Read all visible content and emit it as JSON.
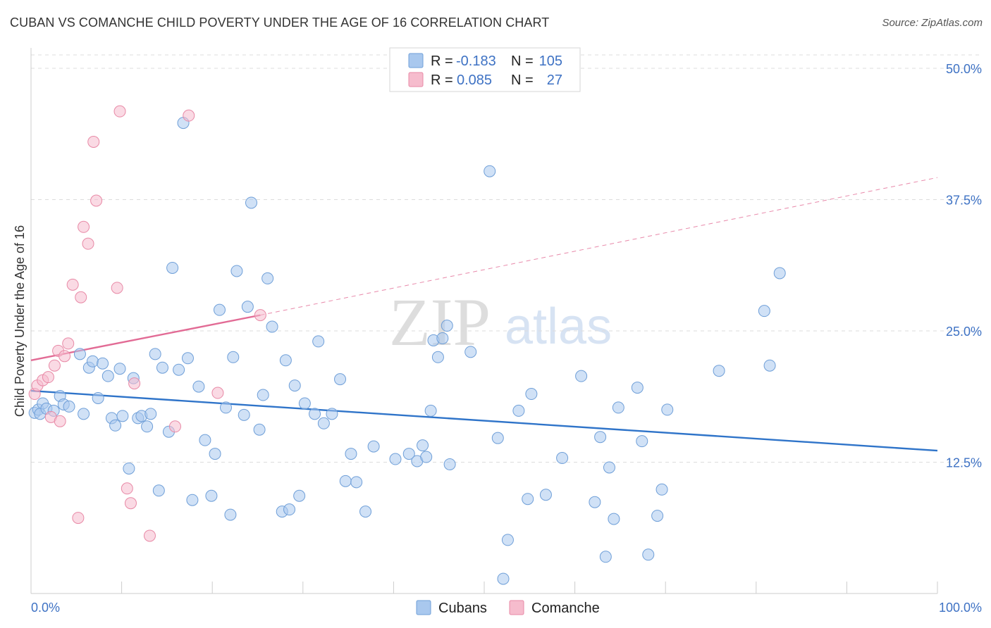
{
  "header": {
    "title": "CUBAN VS COMANCHE CHILD POVERTY UNDER THE AGE OF 16 CORRELATION CHART",
    "source": "Source: ZipAtlas.com"
  },
  "watermark": {
    "zip": "ZIP",
    "atlas": "atlas"
  },
  "legend_top": {
    "rows": [
      {
        "r_label": "R =",
        "r_value": "-0.183",
        "n_label": "N =",
        "n_value": "105",
        "color": "#a9c8ee",
        "stroke": "#6f9fd8"
      },
      {
        "r_label": "R =",
        "r_value": "0.085",
        "n_label": "N =",
        "n_value": "27",
        "color": "#f6bccd",
        "stroke": "#e889a6"
      }
    ]
  },
  "legend_bottom": {
    "items": [
      {
        "label": "Cubans",
        "color": "#a9c8ee",
        "stroke": "#6f9fd8"
      },
      {
        "label": "Comanche",
        "color": "#f6bccd",
        "stroke": "#e889a6"
      }
    ]
  },
  "chart_data": {
    "type": "scatter",
    "title": "CUBAN VS COMANCHE CHILD POVERTY UNDER THE AGE OF 16 CORRELATION CHART",
    "xlabel": "",
    "ylabel": "Child Poverty Under the Age of 16",
    "xlim": [
      0,
      100
    ],
    "ylim": [
      0,
      52
    ],
    "x_tick_labels": [
      "0.0%",
      "100.0%"
    ],
    "y_ticks": [
      12.5,
      25.0,
      37.5,
      50.0
    ],
    "y_tick_labels": [
      "12.5%",
      "25.0%",
      "37.5%",
      "50.0%"
    ],
    "grid": true,
    "legend_position": "top-center",
    "series": [
      {
        "name": "Cubans",
        "color": "#a9c8ee",
        "stroke": "#6f9fd8",
        "trend": {
          "x": [
            0,
            100
          ],
          "y": [
            19.3,
            13.6
          ],
          "color": "#2f74c9"
        },
        "points": [
          [
            0.4,
            17.2
          ],
          [
            0.8,
            17.5
          ],
          [
            1.0,
            17.1
          ],
          [
            1.3,
            18.1
          ],
          [
            1.7,
            17.6
          ],
          [
            2.5,
            17.4
          ],
          [
            3.2,
            18.8
          ],
          [
            3.6,
            18.0
          ],
          [
            4.2,
            17.8
          ],
          [
            5.4,
            22.8
          ],
          [
            5.8,
            17.1
          ],
          [
            6.4,
            21.5
          ],
          [
            6.8,
            22.1
          ],
          [
            7.4,
            18.6
          ],
          [
            7.9,
            21.9
          ],
          [
            8.5,
            20.7
          ],
          [
            8.9,
            16.7
          ],
          [
            9.3,
            16.0
          ],
          [
            9.8,
            21.4
          ],
          [
            10.1,
            16.9
          ],
          [
            10.8,
            11.9
          ],
          [
            11.3,
            20.5
          ],
          [
            11.8,
            16.7
          ],
          [
            12.2,
            16.9
          ],
          [
            12.8,
            15.9
          ],
          [
            13.2,
            17.1
          ],
          [
            13.7,
            22.8
          ],
          [
            14.1,
            9.8
          ],
          [
            14.5,
            21.5
          ],
          [
            15.2,
            15.4
          ],
          [
            15.6,
            31.0
          ],
          [
            16.3,
            21.3
          ],
          [
            16.8,
            44.8
          ],
          [
            17.3,
            22.4
          ],
          [
            17.8,
            8.9
          ],
          [
            18.5,
            19.7
          ],
          [
            19.2,
            14.6
          ],
          [
            19.9,
            9.3
          ],
          [
            20.3,
            13.3
          ],
          [
            20.8,
            27.0
          ],
          [
            21.5,
            17.7
          ],
          [
            22.0,
            7.5
          ],
          [
            22.3,
            22.5
          ],
          [
            22.7,
            30.7
          ],
          [
            23.5,
            17.0
          ],
          [
            23.9,
            27.3
          ],
          [
            24.3,
            37.2
          ],
          [
            25.2,
            15.6
          ],
          [
            25.6,
            18.9
          ],
          [
            26.1,
            30.0
          ],
          [
            26.6,
            25.4
          ],
          [
            27.7,
            7.8
          ],
          [
            28.1,
            22.2
          ],
          [
            28.5,
            8.0
          ],
          [
            29.1,
            19.8
          ],
          [
            29.6,
            9.3
          ],
          [
            30.2,
            18.1
          ],
          [
            31.3,
            17.1
          ],
          [
            31.7,
            24.0
          ],
          [
            32.3,
            16.2
          ],
          [
            33.2,
            17.1
          ],
          [
            34.1,
            20.4
          ],
          [
            34.7,
            10.7
          ],
          [
            35.3,
            13.3
          ],
          [
            35.9,
            10.6
          ],
          [
            36.9,
            7.8
          ],
          [
            37.8,
            14.0
          ],
          [
            40.2,
            12.8
          ],
          [
            41.7,
            13.3
          ],
          [
            42.6,
            12.6
          ],
          [
            43.2,
            14.1
          ],
          [
            43.6,
            13.0
          ],
          [
            44.1,
            17.4
          ],
          [
            44.4,
            24.1
          ],
          [
            44.9,
            22.5
          ],
          [
            45.4,
            24.3
          ],
          [
            45.9,
            25.5
          ],
          [
            46.2,
            12.3
          ],
          [
            48.5,
            23.0
          ],
          [
            50.6,
            40.2
          ],
          [
            51.5,
            14.8
          ],
          [
            52.1,
            1.4
          ],
          [
            52.6,
            5.1
          ],
          [
            53.8,
            17.4
          ],
          [
            54.8,
            9.0
          ],
          [
            55.2,
            19.0
          ],
          [
            56.8,
            9.4
          ],
          [
            58.6,
            12.9
          ],
          [
            60.7,
            20.7
          ],
          [
            62.2,
            8.7
          ],
          [
            62.8,
            14.9
          ],
          [
            63.4,
            3.5
          ],
          [
            63.8,
            12.0
          ],
          [
            64.3,
            7.1
          ],
          [
            64.8,
            17.7
          ],
          [
            66.9,
            19.6
          ],
          [
            67.4,
            14.5
          ],
          [
            68.1,
            3.7
          ],
          [
            69.1,
            7.4
          ],
          [
            69.6,
            9.9
          ],
          [
            70.2,
            17.5
          ],
          [
            75.9,
            21.2
          ],
          [
            80.9,
            26.9
          ],
          [
            81.5,
            21.7
          ],
          [
            82.6,
            30.5
          ]
        ]
      },
      {
        "name": "Comanche",
        "color": "#f6bccd",
        "stroke": "#e889a6",
        "trend": {
          "x": [
            0,
            25.3
          ],
          "y": [
            22.2,
            26.5
          ],
          "dashed_to": [
            100,
            39.6
          ],
          "color": "#e26b95"
        },
        "points": [
          [
            0.4,
            19.0
          ],
          [
            0.7,
            19.8
          ],
          [
            1.3,
            20.3
          ],
          [
            1.9,
            20.6
          ],
          [
            2.2,
            16.8
          ],
          [
            2.6,
            21.7
          ],
          [
            3.0,
            23.1
          ],
          [
            3.2,
            16.4
          ],
          [
            3.7,
            22.6
          ],
          [
            4.1,
            23.8
          ],
          [
            4.6,
            29.4
          ],
          [
            5.2,
            7.2
          ],
          [
            5.5,
            28.2
          ],
          [
            5.8,
            34.9
          ],
          [
            6.3,
            33.3
          ],
          [
            6.9,
            43.0
          ],
          [
            7.2,
            37.4
          ],
          [
            9.5,
            29.1
          ],
          [
            9.8,
            45.9
          ],
          [
            10.6,
            10.0
          ],
          [
            11.0,
            8.6
          ],
          [
            11.4,
            20.0
          ],
          [
            13.1,
            5.5
          ],
          [
            15.9,
            15.9
          ],
          [
            17.4,
            45.5
          ],
          [
            20.6,
            19.1
          ],
          [
            25.3,
            26.5
          ]
        ]
      }
    ]
  }
}
